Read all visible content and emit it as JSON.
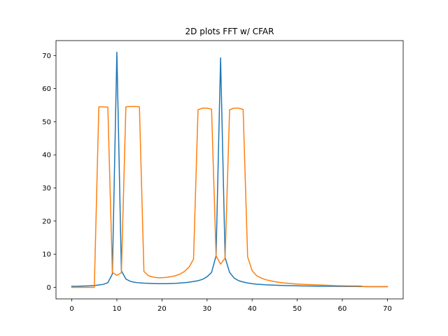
{
  "chart_data": {
    "type": "line",
    "title": "2D plots FFT w/ CFAR",
    "xlabel": "",
    "ylabel": "",
    "xlim": [
      -3.5,
      73.5
    ],
    "ylim": [
      -3.5,
      74.5
    ],
    "xticks": [
      0,
      10,
      20,
      30,
      40,
      50,
      60,
      70
    ],
    "yticks": [
      0,
      10,
      20,
      30,
      40,
      50,
      60,
      70
    ],
    "grid": false,
    "legend": "none",
    "series": [
      {
        "color": "#1f77b4",
        "x": [
          0,
          1,
          2,
          3,
          4,
          5,
          6,
          7,
          8,
          9,
          10,
          11,
          12,
          13,
          14,
          15,
          16,
          17,
          18,
          19,
          20,
          21,
          22,
          23,
          24,
          25,
          26,
          27,
          28,
          29,
          30,
          31,
          32,
          33,
          34,
          35,
          36,
          37,
          38,
          39,
          40,
          41,
          42,
          43,
          44,
          45,
          46,
          47,
          48,
          49,
          50,
          51,
          52,
          53,
          54,
          55,
          56,
          57,
          58,
          59,
          60,
          61,
          62,
          63,
          64,
          65,
          66,
          67,
          68,
          69,
          70
        ],
        "y": [
          0.3,
          0.3,
          0.35,
          0.4,
          0.45,
          0.55,
          0.7,
          0.9,
          1.4,
          4.0,
          71.0,
          5.0,
          2.5,
          1.8,
          1.5,
          1.35,
          1.25,
          1.2,
          1.15,
          1.1,
          1.1,
          1.1,
          1.15,
          1.2,
          1.3,
          1.4,
          1.55,
          1.75,
          2.0,
          2.4,
          3.2,
          4.5,
          9.5,
          69.3,
          9.0,
          4.5,
          2.8,
          2.0,
          1.6,
          1.3,
          1.1,
          0.95,
          0.85,
          0.75,
          0.7,
          0.65,
          0.6,
          0.55,
          0.5,
          0.48,
          0.45,
          0.42,
          0.4,
          0.38,
          0.36,
          0.34,
          0.32,
          0.3,
          0.3,
          0.28,
          0.27,
          0.26,
          0.25,
          0.24,
          0.23,
          0.22,
          0.21,
          0.2,
          0.2,
          0.2,
          0.2
        ]
      },
      {
        "color": "#ff7f0e",
        "x": [
          0,
          1,
          2,
          3,
          4,
          5,
          6,
          7,
          8,
          9,
          10,
          11,
          12,
          13,
          14,
          15,
          16,
          17,
          18,
          19,
          20,
          21,
          22,
          23,
          24,
          25,
          26,
          27,
          28,
          29,
          30,
          31,
          32,
          33,
          34,
          35,
          36,
          37,
          38,
          39,
          40,
          41,
          42,
          43,
          44,
          45,
          46,
          47,
          48,
          49,
          50,
          51,
          52,
          53,
          54,
          55,
          56,
          57,
          58,
          59,
          60,
          61,
          62,
          63,
          64,
          65,
          66,
          67,
          68,
          69,
          70
        ],
        "y": [
          0,
          0,
          0,
          0,
          0,
          0,
          54.5,
          54.5,
          54.4,
          4.5,
          3.6,
          4.4,
          54.5,
          54.6,
          54.6,
          54.5,
          4.8,
          3.5,
          3.1,
          2.9,
          2.9,
          3.0,
          3.2,
          3.5,
          4.0,
          4.8,
          6.1,
          8.5,
          53.6,
          54.1,
          54.1,
          53.8,
          9.5,
          7.0,
          8.8,
          53.6,
          54.1,
          54.1,
          53.7,
          9.2,
          5.0,
          3.5,
          2.8,
          2.3,
          2.0,
          1.7,
          1.5,
          1.3,
          1.2,
          1.1,
          1.0,
          0.9,
          0.85,
          0.8,
          0.75,
          0.7,
          0.65,
          0.6,
          0.55,
          0.5,
          0.47,
          0.44,
          0.42,
          0.4,
          0.38,
          0.2,
          0.2,
          0.2,
          0.2,
          0.2,
          0.2
        ]
      }
    ]
  }
}
